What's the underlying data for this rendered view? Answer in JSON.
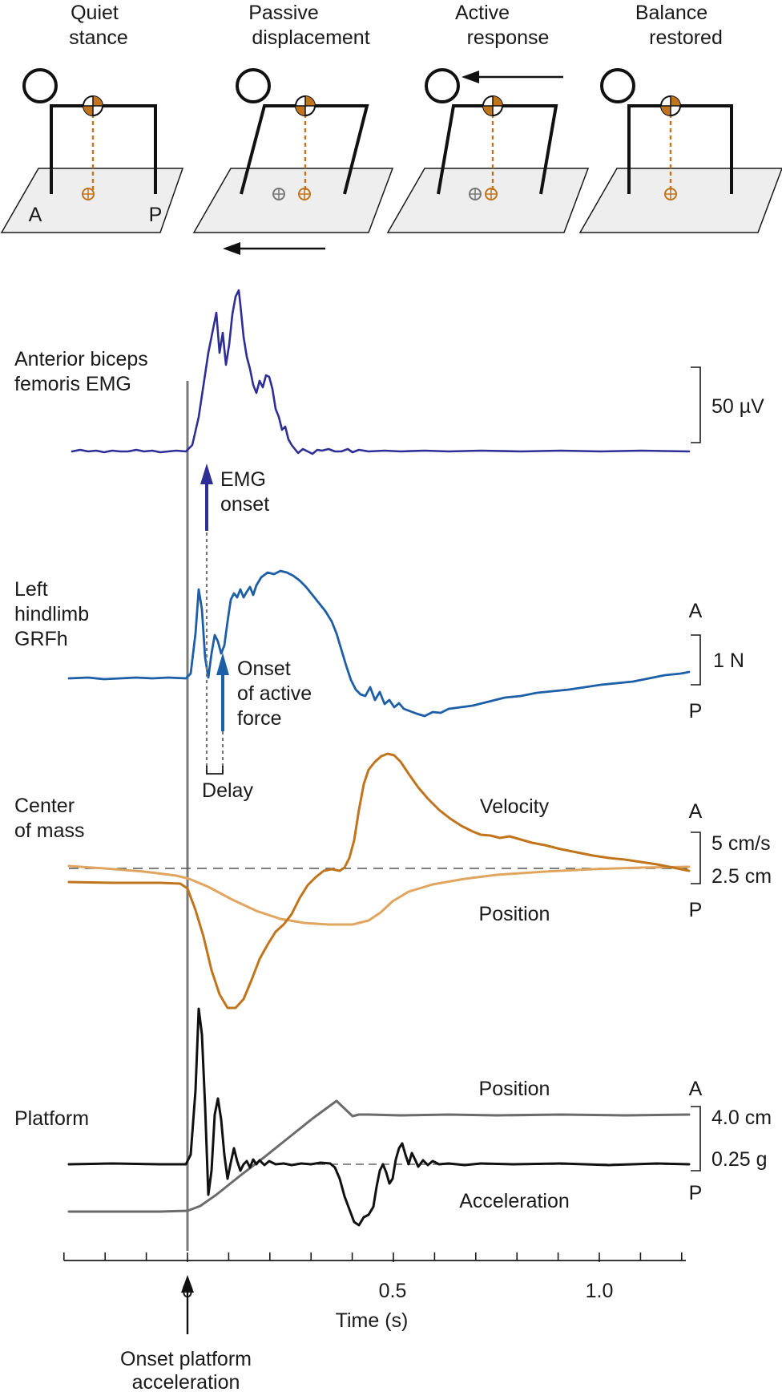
{
  "panels": [
    {
      "title_line1": "Quiet",
      "title_line2": "stance"
    },
    {
      "title_line1": "Passive",
      "title_line2": "displacement"
    },
    {
      "title_line1": "Active",
      "title_line2": "response"
    },
    {
      "title_line1": "Balance",
      "title_line2": "restored"
    }
  ],
  "stance_labels": {
    "anterior": "A",
    "posterior": "P"
  },
  "traces": {
    "emg": {
      "label_line1": "Anterior biceps",
      "label_line2": "femoris EMG",
      "scale": "50 µV",
      "color": "#2e2e96"
    },
    "emg_onset": {
      "line1": "EMG",
      "line2": "onset"
    },
    "grf": {
      "label_line1": "Left",
      "label_line2": "hindlimb",
      "label_line3": "GRFh",
      "scale": "1 N",
      "dir_a": "A",
      "dir_p": "P",
      "color": "#1c5fa6"
    },
    "active_force": {
      "line1": "Onset",
      "line2": "of active",
      "line3": "force"
    },
    "delay": "Delay",
    "com": {
      "label_line1": "Center",
      "label_line2": "of mass",
      "velocity": "Velocity",
      "position": "Position",
      "scale_velocity": "5 cm/s",
      "scale_position": "2.5 cm",
      "dir_a": "A",
      "dir_p": "P",
      "velocity_color": "#c0741c",
      "position_color": "#e0a55e"
    },
    "platform": {
      "label": "Platform",
      "position": "Position",
      "acceleration": "Acceleration",
      "scale_position": "4.0 cm",
      "scale_acceleration": "0.25 g",
      "dir_a": "A",
      "dir_p": "P",
      "acceleration_color": "#111111",
      "position_color": "#6b6b6b"
    }
  },
  "time_axis": {
    "label": "Time (s)",
    "ticks": [
      "0",
      "0.5",
      "1.0"
    ],
    "range_s": [
      -0.3,
      1.2
    ]
  },
  "onset": {
    "line1": "Onset platform",
    "line2": "acceleration"
  }
}
